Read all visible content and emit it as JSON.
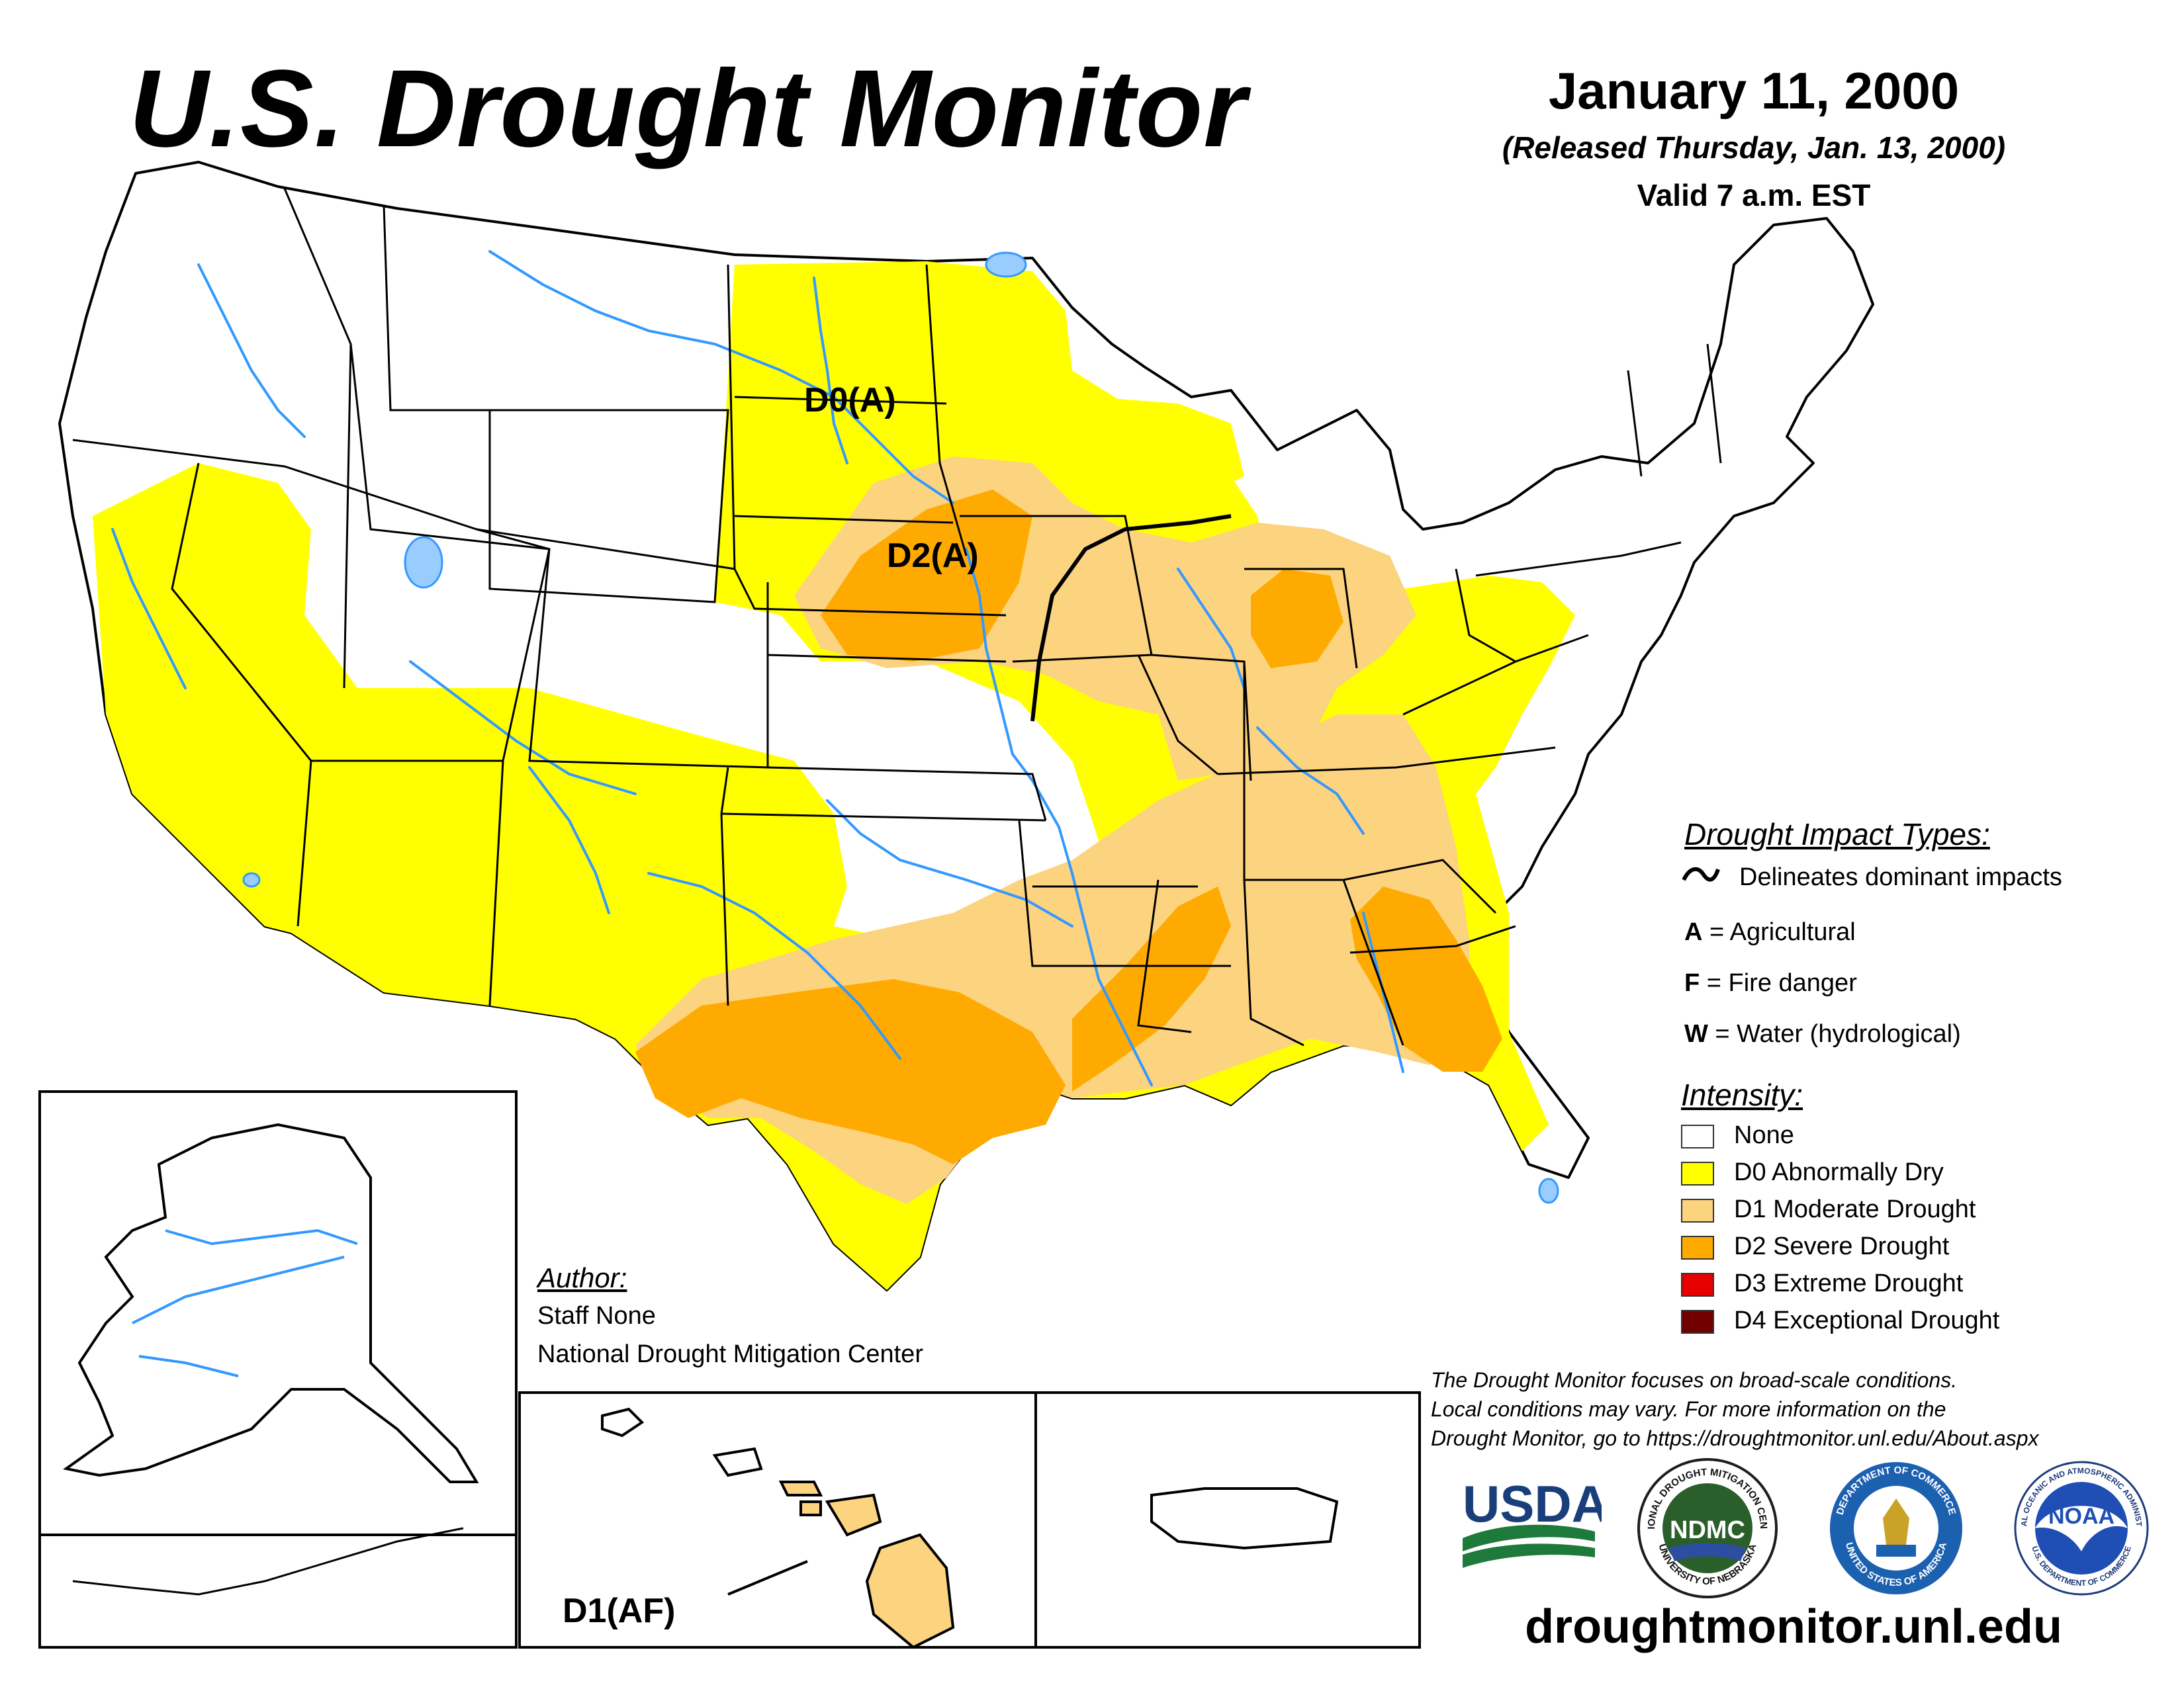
{
  "header": {
    "title": "U.S. Drought Monitor",
    "date": "January 11, 2000",
    "released": "(Released Thursday, Jan. 13, 2000)",
    "valid": "Valid 7 a.m. EST"
  },
  "map_labels": {
    "d0": "D0(A)",
    "d2": "D2(A)",
    "hawaii": "D1(AF)"
  },
  "impact_legend": {
    "heading": "Drought Impact Types:",
    "delineates": "Delineates dominant impacts",
    "items": [
      {
        "code": "A",
        "text": " = Agricultural"
      },
      {
        "code": "F",
        "text": " = Fire danger"
      },
      {
        "code": "W",
        "text": " = Water (hydrological)"
      }
    ]
  },
  "intensity_legend": {
    "heading": "Intensity:",
    "items": [
      {
        "label": "None",
        "color": "#ffffff"
      },
      {
        "label": "D0 Abnormally Dry",
        "color": "#ffff00"
      },
      {
        "label": "D1 Moderate Drought",
        "color": "#fcd37f"
      },
      {
        "label": "D2 Severe Drought",
        "color": "#ffaa00"
      },
      {
        "label": "D3 Extreme Drought",
        "color": "#e60000"
      },
      {
        "label": "D4 Exceptional Drought",
        "color": "#730000"
      }
    ]
  },
  "author": {
    "heading": "Author:",
    "name": "Staff None",
    "org": "National Drought Mitigation Center"
  },
  "note": {
    "line1": "The Drought Monitor focuses on broad-scale conditions.",
    "line2": "Local conditions may vary. For more information on the",
    "line3": "Drought Monitor, go to https://droughtmonitor.unl.edu/About.aspx"
  },
  "logos": {
    "usda": "USDA",
    "ndmc": "NDMC",
    "ndmc_ring_top": "NATIONAL DROUGHT MITIGATION CENTER",
    "ndmc_ring_bottom": "UNIVERSITY OF NEBRASKA",
    "doc_ring_top": "DEPARTMENT OF COMMERCE",
    "doc_ring_bottom": "UNITED STATES OF AMERICA",
    "noaa": "NOAA",
    "noaa_ring_top": "NATIONAL OCEANIC AND ATMOSPHERIC ADMINISTRATION",
    "noaa_ring_bottom": "U.S. DEPARTMENT OF COMMERCE"
  },
  "footer": {
    "url": "droughtmonitor.unl.edu"
  }
}
